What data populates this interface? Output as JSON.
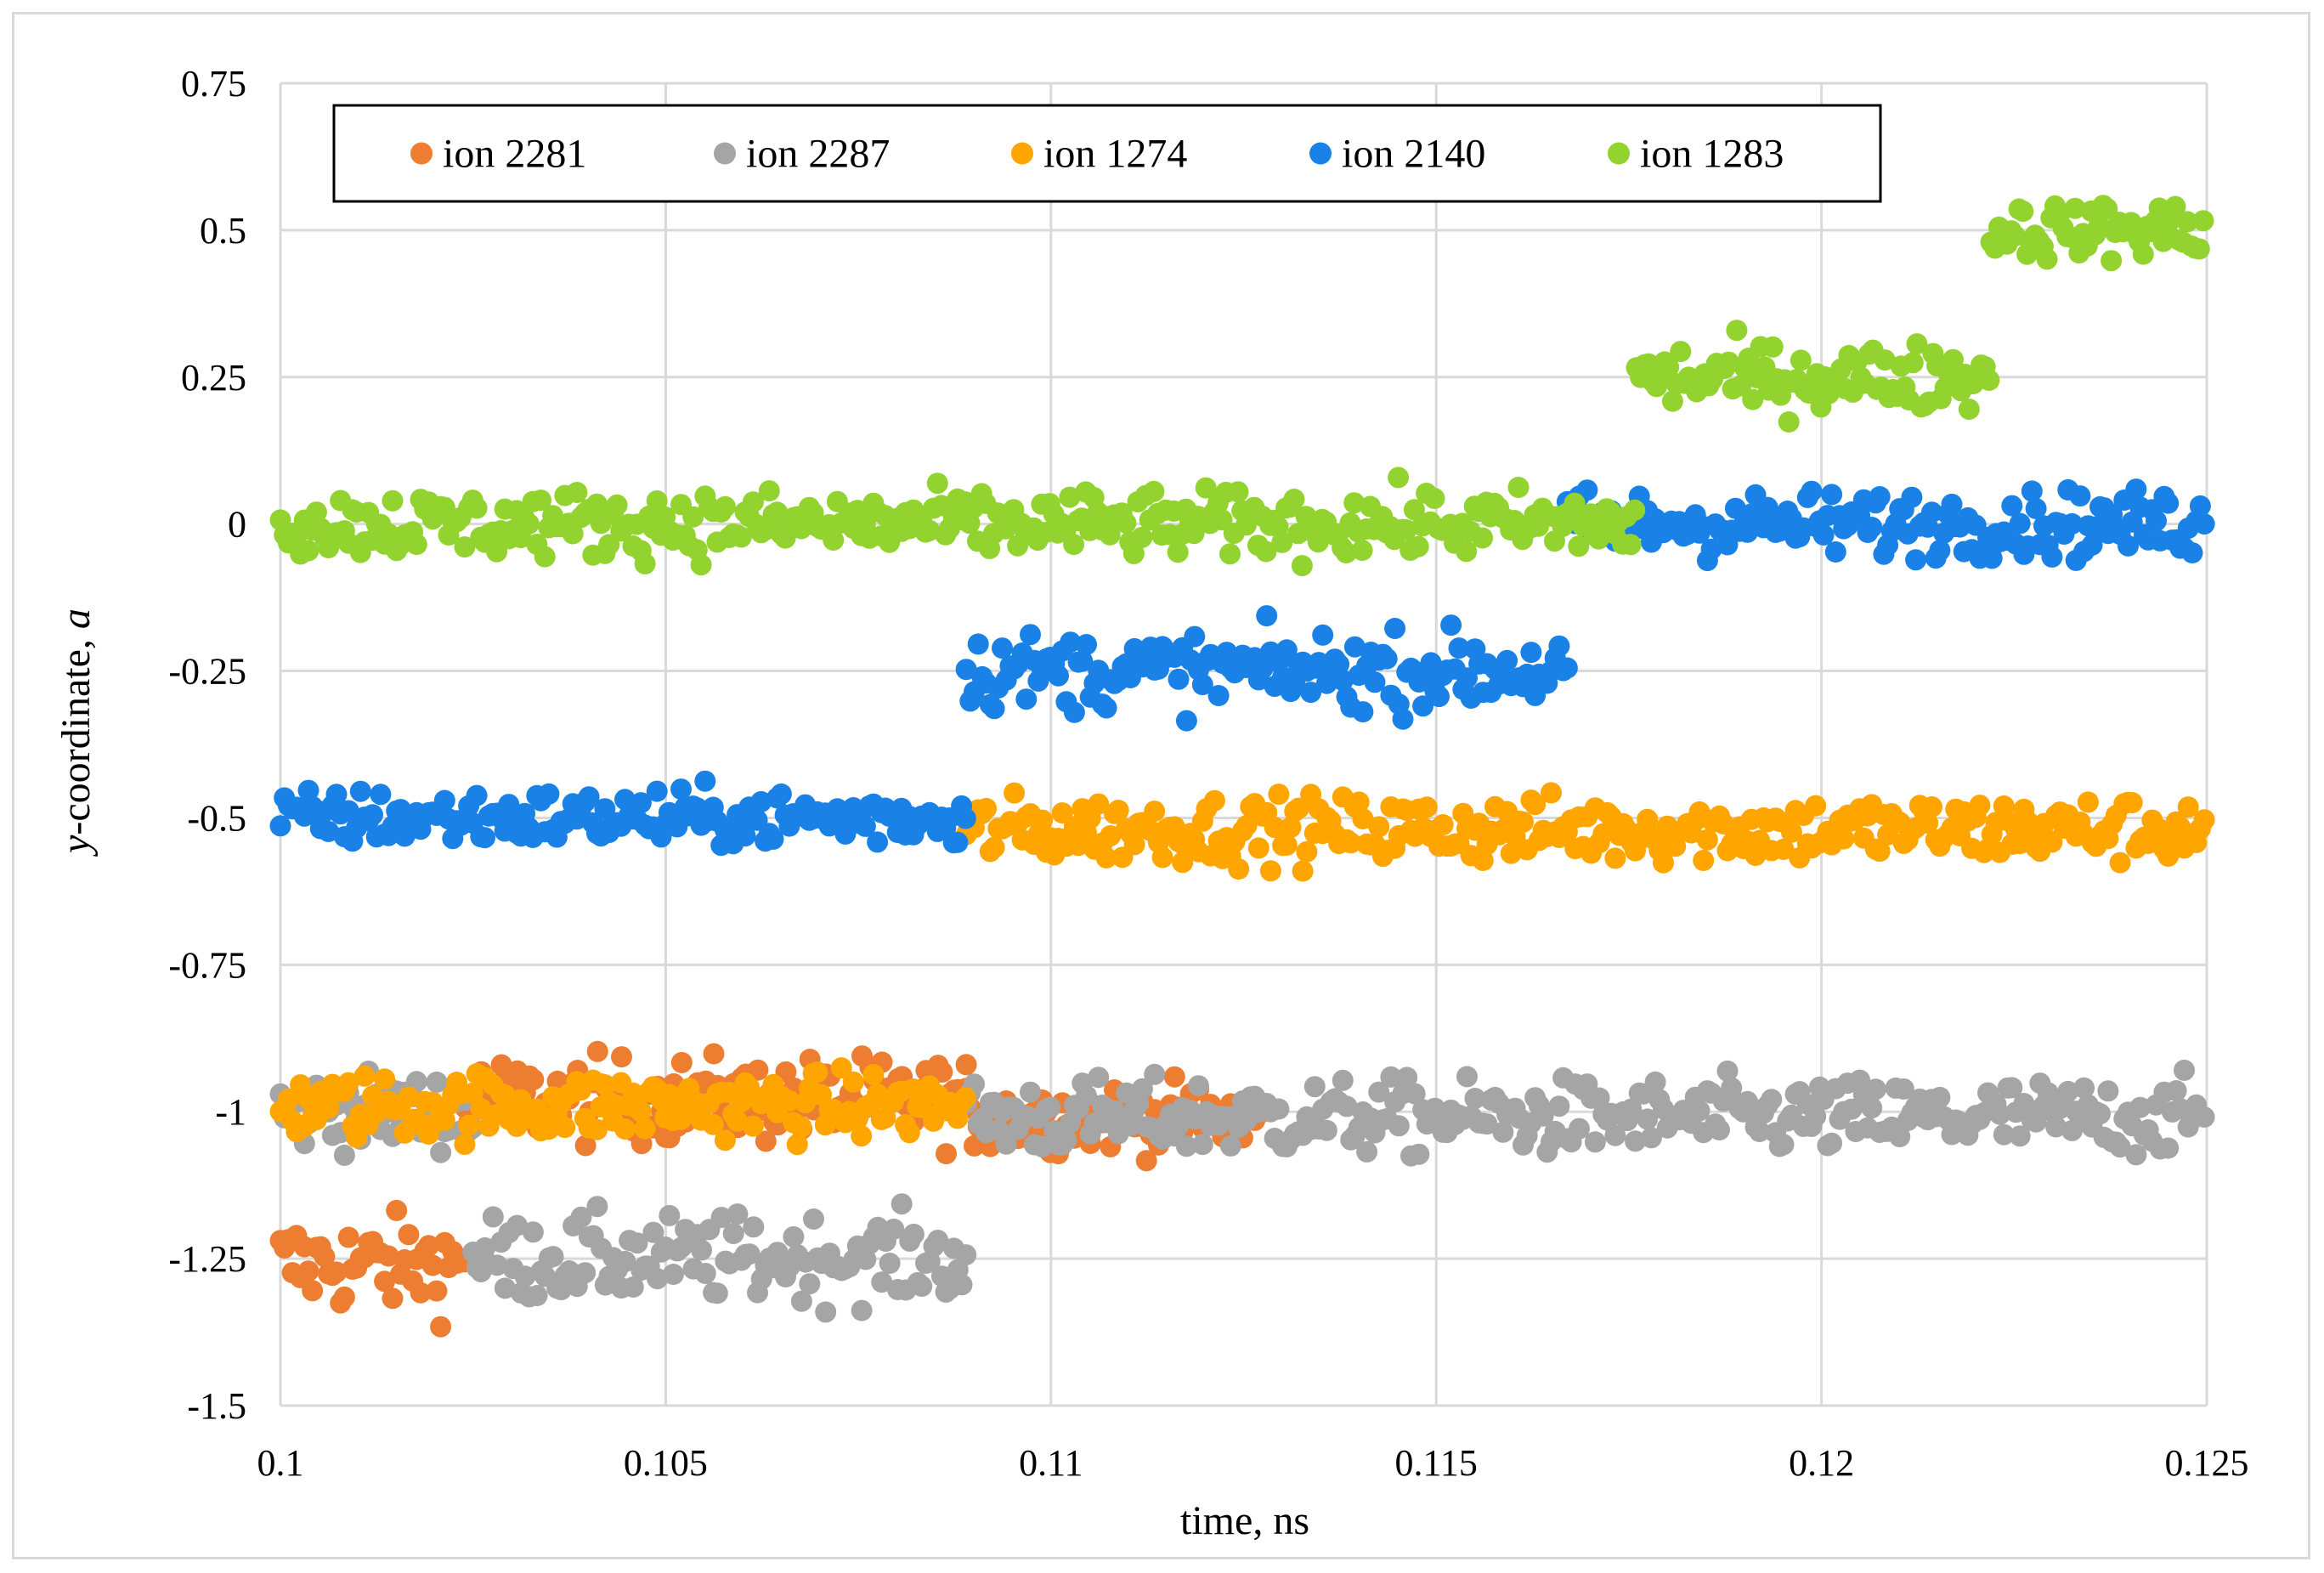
{
  "chart_data": {
    "type": "scatter",
    "title": "",
    "xlabel": "time, ns",
    "ylabel_prefix": "y",
    "ylabel_main": "-coordinate, ",
    "ylabel_suffix": "a",
    "xlim": [
      0.1,
      0.125
    ],
    "ylim": [
      -1.5,
      0.75
    ],
    "x_ticks": [
      0.1,
      0.105,
      0.11,
      0.115,
      0.12,
      0.125
    ],
    "x_tick_labels": [
      "0.1",
      "0.105",
      "0.11",
      "0.115",
      "0.12",
      "0.125"
    ],
    "y_ticks": [
      0.75,
      0.5,
      0.25,
      0,
      -0.25,
      -0.5,
      -0.75,
      -1,
      -1.25,
      -1.5
    ],
    "y_tick_labels": [
      "0.75",
      "0.5",
      "0.25",
      "0",
      "-0.25",
      "-0.5",
      "-0.75",
      "-1",
      "-1.25",
      "-1.5"
    ],
    "grid": true,
    "legend_position": "top-left inside plot",
    "series": [
      {
        "name": "ion 2281",
        "color": "#ed7d31",
        "segments": [
          {
            "x0": 0.1,
            "x1": 0.1024,
            "mean": -1.26,
            "spread": 0.05
          },
          {
            "x0": 0.1024,
            "x1": 0.1089,
            "mean": -0.98,
            "spread": 0.045
          },
          {
            "x0": 0.1089,
            "x1": 0.1127,
            "mean": -1.01,
            "spread": 0.035
          }
        ]
      },
      {
        "name": "ion 2287",
        "color": "#a5a5a5",
        "segments": [
          {
            "x0": 0.1,
            "x1": 0.1025,
            "mean": -1.0,
            "spread": 0.04
          },
          {
            "x0": 0.1025,
            "x1": 0.1089,
            "mean": -1.25,
            "spread": 0.045
          },
          {
            "x0": 0.1089,
            "x1": 0.125,
            "mean": -1.01,
            "spread": 0.04
          }
        ]
      },
      {
        "name": "ion 1274",
        "color": "#ffa500",
        "segments": [
          {
            "x0": 0.1,
            "x1": 0.1089,
            "mean": -0.99,
            "spread": 0.035
          },
          {
            "x0": 0.1089,
            "x1": 0.125,
            "mean": -0.52,
            "spread": 0.035
          }
        ]
      },
      {
        "name": "ion 2140",
        "color": "#1a82e6",
        "segments": [
          {
            "x0": 0.1,
            "x1": 0.1089,
            "mean": -0.5,
            "spread": 0.03
          },
          {
            "x0": 0.1089,
            "x1": 0.1167,
            "mean": -0.25,
            "spread": 0.04
          },
          {
            "x0": 0.1167,
            "x1": 0.125,
            "mean": 0.0,
            "spread": 0.035
          }
        ]
      },
      {
        "name": "ion 1283",
        "color": "#92d330",
        "segments": [
          {
            "x0": 0.1,
            "x1": 0.1176,
            "mean": 0.0,
            "spread": 0.035
          },
          {
            "x0": 0.1176,
            "x1": 0.1222,
            "mean": 0.25,
            "spread": 0.035
          },
          {
            "x0": 0.1222,
            "x1": 0.125,
            "mean": 0.5,
            "spread": 0.03
          }
        ]
      }
    ]
  }
}
